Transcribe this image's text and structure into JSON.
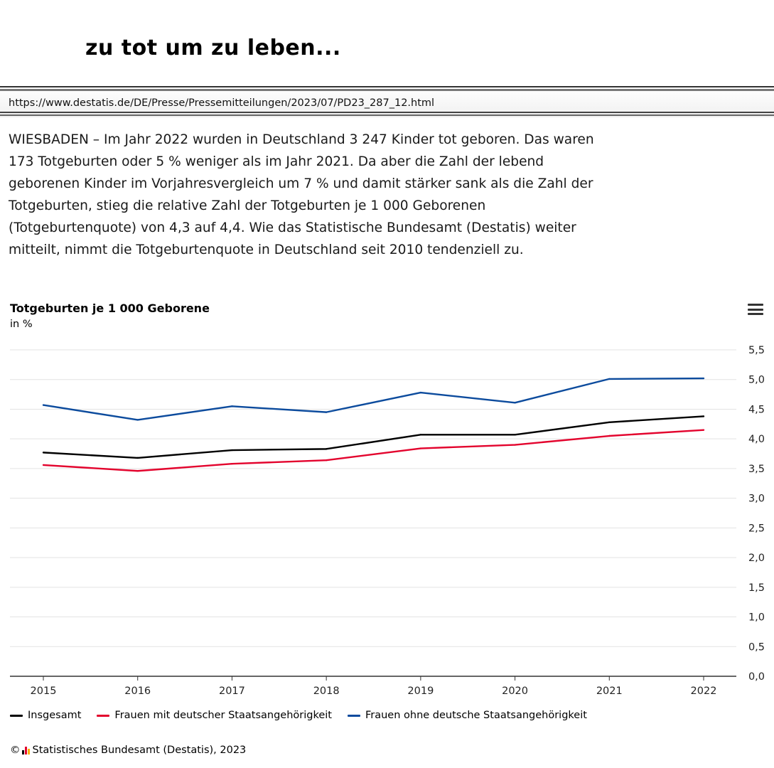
{
  "headline": "zu tot um zu leben...",
  "url": "https://www.destatis.de/DE/Presse/Pressemitteilungen/2023/07/PD23_287_12.html",
  "article_lines": [
    "WIESBADEN – Im Jahr 2022 wurden in Deutschland 3 247 Kinder tot geboren. Das waren",
    "173 Totgeburten oder 5 % weniger als im Jahr 2021. Da aber die Zahl der lebend",
    "geborenen Kinder im Vorjahresvergleich um 7 % und damit stärker sank als die Zahl der",
    "Totgeburten, stieg die relative Zahl der Totgeburten je 1 000 Geborenen",
    "(Totgeburtenquote) von 4,3 auf 4,4. Wie das Statistische Bundesamt (Destatis) weiter",
    "mitteilt, nimmt die Totgeburtenquote in Deutschland seit 2010 tendenziell zu."
  ],
  "menu_icon": "hamburger-menu-icon",
  "credit": {
    "copyright": "©",
    "text": "Statistisches Bundesamt (Destatis), 2023",
    "logo_colors": [
      "#000000",
      "#e3032d",
      "#f9b000"
    ]
  },
  "chart_data": {
    "type": "line",
    "title": "Totgeburten je 1 000 Geborene",
    "subtitle": "in %",
    "x": [
      "2015",
      "2016",
      "2017",
      "2018",
      "2019",
      "2020",
      "2021",
      "2022"
    ],
    "ylim": [
      0,
      5.5
    ],
    "yticks": [
      "0,0",
      "0,5",
      "1,0",
      "1,5",
      "2,0",
      "2,5",
      "3,0",
      "3,5",
      "4,0",
      "4,5",
      "5,0",
      "5,5"
    ],
    "grid": true,
    "legend_position": "bottom-left",
    "series": [
      {
        "name": "Insgesamt",
        "color": "#000000",
        "values": [
          3.77,
          3.68,
          3.81,
          3.83,
          4.07,
          4.07,
          4.28,
          4.38
        ]
      },
      {
        "name": "Frauen mit deutscher Staatsangehörigkeit",
        "color": "#e3032d",
        "values": [
          3.56,
          3.46,
          3.58,
          3.64,
          3.84,
          3.9,
          4.05,
          4.15
        ]
      },
      {
        "name": "Frauen ohne deutsche Staatsangehörigkeit",
        "color": "#0c4b9d",
        "values": [
          4.57,
          4.32,
          4.55,
          4.45,
          4.78,
          4.61,
          5.01,
          5.02
        ]
      }
    ]
  }
}
